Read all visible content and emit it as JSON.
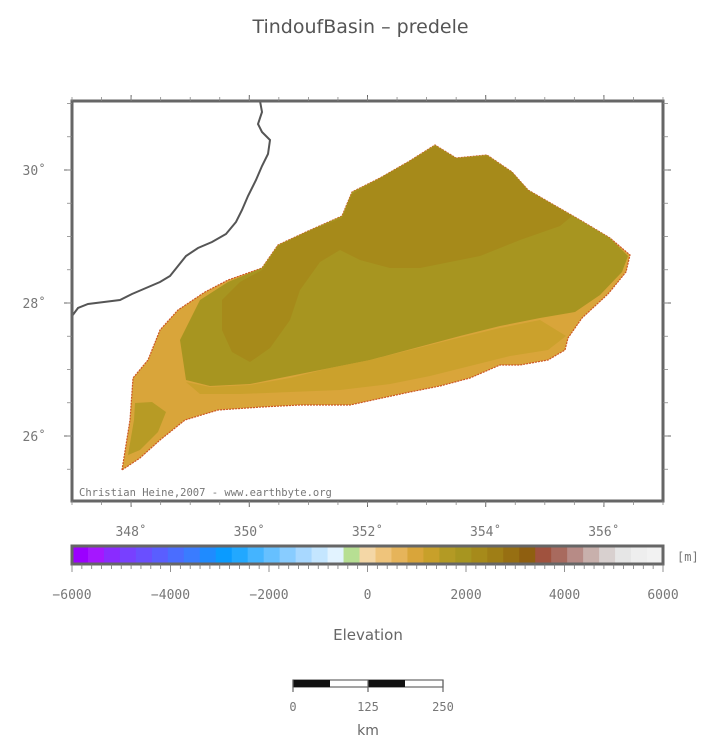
{
  "title": "TindoufBasin – predele",
  "credit": "Christian Heine,2007 - www.earthbyte.org",
  "map": {
    "lon_ticks": [
      {
        "value": 348,
        "label": "348˚"
      },
      {
        "value": 350,
        "label": "350˚"
      },
      {
        "value": 352,
        "label": "352˚"
      },
      {
        "value": 354,
        "label": "354˚"
      },
      {
        "value": 356,
        "label": "356˚"
      }
    ],
    "lat_ticks": [
      {
        "value": 30,
        "label": "30˚"
      },
      {
        "value": 28,
        "label": "28˚"
      },
      {
        "value": 26,
        "label": "26˚"
      }
    ],
    "colors": {
      "basin_dark": "#a68a1a",
      "basin_mid": "#a79520",
      "basin_light": "#d9a53a",
      "basin_edge": "#cc5522",
      "coastline": "#555555",
      "frame": "#666666"
    }
  },
  "colorbar": {
    "label": "Elevation",
    "unit": "[m]",
    "tick_labels": [
      "−6000",
      "−4000",
      "−2000",
      "0",
      "2000",
      "4000",
      "6000"
    ],
    "colors": [
      "#9b00ff",
      "#a517ff",
      "#8a2bff",
      "#7840ff",
      "#6a4fff",
      "#5a5eff",
      "#4a6dff",
      "#3a7cff",
      "#1f8bff",
      "#0a9bff",
      "#22a8ff",
      "#44b4ff",
      "#66c0ff",
      "#88ccff",
      "#a8d8ff",
      "#c4e6ff",
      "#e2f3ff",
      "#b7df93",
      "#f4d7a6",
      "#efc47b",
      "#e6b45a",
      "#d9a53a",
      "#c8a02a",
      "#b39a24",
      "#a79520",
      "#a68a1a",
      "#9f7e16",
      "#976f12",
      "#8f5f10",
      "#a0523e",
      "#a86a5e",
      "#b78b86",
      "#c8b0ac",
      "#d8d0cf",
      "#e6e6e6",
      "#eeeeee",
      "#f2f2f2"
    ]
  },
  "scale": {
    "unit": "km",
    "labels": [
      "0",
      "125",
      "250"
    ]
  }
}
